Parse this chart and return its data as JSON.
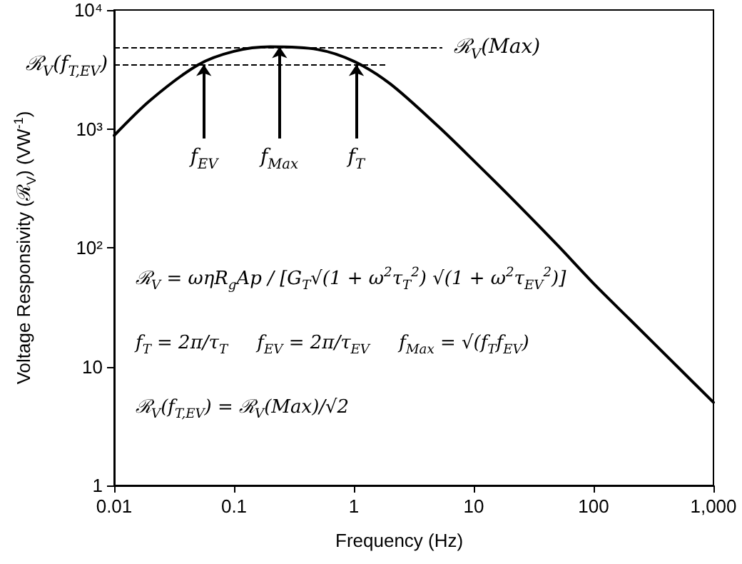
{
  "chart_data": {
    "type": "line",
    "xlabel": "Frequency (Hz)",
    "ylabel": "Voltage Responsivity (ℛ$_{V}$) (VW$^{-1}$)",
    "x": [
      0.01,
      0.02,
      0.05,
      0.1,
      0.2,
      0.5,
      1,
      2,
      5,
      10,
      20,
      50,
      100,
      200,
      500,
      1000
    ],
    "series": [
      {
        "color": "#000000",
        "values": [
          880,
          1740,
          3450,
          4490,
          4900,
          4650,
          3700,
          2400,
          1060,
          540,
          270,
          105,
          50,
          25,
          10,
          5
        ]
      }
    ],
    "xlim": [
      0.01,
      1000
    ],
    "ylim": [
      1,
      10000
    ],
    "log": "xy",
    "xticks": [
      0.01,
      0.1,
      1,
      10,
      100,
      {
        "value": 1000,
        "label": "1,000"
      }
    ],
    "yticks": [
      1,
      10,
      {
        "value": 100,
        "label": "10²"
      },
      {
        "value": 1000,
        "label": "10³"
      },
      {
        "value": 10000,
        "label": "10⁴"
      }
    ],
    "grid": false,
    "marker": "none",
    "line_style": "solid",
    "ref_lines": [
      {
        "axis": "y",
        "value": 4900,
        "label": "ℛ$_{V}$(Max)",
        "line_style": "dashed"
      },
      {
        "axis": "y",
        "value": 3470,
        "label": "ℛ$_{V}$(f$_{T,EV}$)",
        "line_style": "dashed"
      }
    ],
    "annotations": [
      {
        "text": "f$_{EV}$",
        "x": 0.056,
        "y": 3470
      },
      {
        "text": "f$_{Max}$",
        "x": 0.24,
        "y": 4900
      },
      {
        "text": "f$_{T}$",
        "x": 1.05,
        "y": 3470
      },
      "ℛ$_{V}$ = ωηR$_{g}$Ap / [G$_{T}$√(1 + ω$^{2}$τ$_{T}$$^{2}$) √(1 + ω$^{2}$τ$_{EV}$$^{2}$)]",
      "f$_{T}$ = 2π/τ$_{T}$     f$_{EV}$ = 2π/τ$_{EV}$     f$_{Max}$ = √(f$_{T}$f$_{EV}$)",
      "ℛ$_{V}$(f$_{T,EV}$) = ℛ$_{V}$(Max)/√2"
    ]
  }
}
